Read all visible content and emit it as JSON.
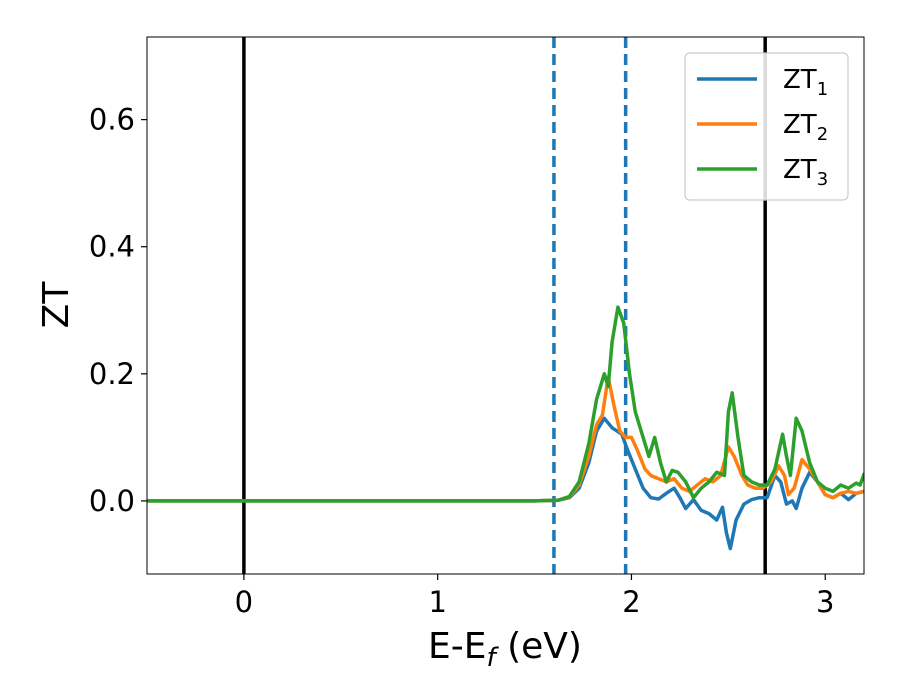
{
  "chart_data": {
    "type": "line",
    "xlabel": "E-E",
    "xlabel_sub": "f",
    "xlabel_unit": " (eV)",
    "ylabel": "ZT",
    "xlim": [
      -0.5,
      3.2
    ],
    "ylim": [
      -0.115,
      0.73
    ],
    "x_ticks": [
      0,
      1,
      2,
      3
    ],
    "x_tick_labels": [
      "0",
      "1",
      "2",
      "3"
    ],
    "y_ticks": [
      0.0,
      0.2,
      0.4,
      0.6
    ],
    "y_tick_labels": [
      "0.0",
      "0.2",
      "0.4",
      "0.6"
    ],
    "grid": false,
    "legend_position": "top-right",
    "vlines": [
      {
        "x": 0.0,
        "style": "solid",
        "color": "#000000"
      },
      {
        "x": 1.6,
        "style": "dashed",
        "color": "#1f77b4"
      },
      {
        "x": 1.97,
        "style": "dashed",
        "color": "#1f77b4"
      },
      {
        "x": 2.69,
        "style": "solid",
        "color": "#000000"
      }
    ],
    "series": [
      {
        "name": "ZT",
        "sub": "1",
        "color": "#1f77b4",
        "points": [
          [
            -0.5,
            0
          ],
          [
            1.5,
            0
          ],
          [
            1.62,
            0.001
          ],
          [
            1.68,
            0.005
          ],
          [
            1.73,
            0.02
          ],
          [
            1.78,
            0.06
          ],
          [
            1.82,
            0.11
          ],
          [
            1.86,
            0.13
          ],
          [
            1.9,
            0.115
          ],
          [
            1.95,
            0.105
          ],
          [
            1.98,
            0.08
          ],
          [
            2.02,
            0.05
          ],
          [
            2.06,
            0.02
          ],
          [
            2.1,
            0.005
          ],
          [
            2.14,
            0.003
          ],
          [
            2.18,
            0.012
          ],
          [
            2.22,
            0.02
          ],
          [
            2.25,
            0.005
          ],
          [
            2.28,
            -0.012
          ],
          [
            2.32,
            0.002
          ],
          [
            2.36,
            -0.015
          ],
          [
            2.4,
            -0.02
          ],
          [
            2.44,
            -0.03
          ],
          [
            2.47,
            -0.01
          ],
          [
            2.49,
            -0.05
          ],
          [
            2.51,
            -0.075
          ],
          [
            2.54,
            -0.03
          ],
          [
            2.58,
            -0.005
          ],
          [
            2.62,
            0.002
          ],
          [
            2.66,
            0.005
          ],
          [
            2.7,
            0.005
          ],
          [
            2.74,
            0.04
          ],
          [
            2.77,
            0.03
          ],
          [
            2.8,
            -0.005
          ],
          [
            2.83,
            0.0
          ],
          [
            2.85,
            -0.012
          ],
          [
            2.88,
            0.02
          ],
          [
            2.92,
            0.045
          ],
          [
            2.96,
            0.03
          ],
          [
            3.0,
            0.01
          ],
          [
            3.04,
            0.005
          ],
          [
            3.08,
            0.012
          ],
          [
            3.12,
            0.002
          ],
          [
            3.16,
            0.012
          ],
          [
            3.2,
            0.015
          ]
        ]
      },
      {
        "name": "ZT",
        "sub": "2",
        "color": "#ff7f0e",
        "points": [
          [
            -0.5,
            0
          ],
          [
            1.5,
            0
          ],
          [
            1.62,
            0.001
          ],
          [
            1.68,
            0.006
          ],
          [
            1.73,
            0.025
          ],
          [
            1.78,
            0.07
          ],
          [
            1.82,
            0.12
          ],
          [
            1.85,
            0.135
          ],
          [
            1.88,
            0.195
          ],
          [
            1.91,
            0.15
          ],
          [
            1.94,
            0.11
          ],
          [
            1.97,
            0.1
          ],
          [
            2.0,
            0.1
          ],
          [
            2.03,
            0.08
          ],
          [
            2.07,
            0.05
          ],
          [
            2.1,
            0.04
          ],
          [
            2.14,
            0.035
          ],
          [
            2.18,
            0.03
          ],
          [
            2.22,
            0.035
          ],
          [
            2.26,
            0.02
          ],
          [
            2.3,
            0.015
          ],
          [
            2.34,
            0.025
          ],
          [
            2.38,
            0.035
          ],
          [
            2.42,
            0.03
          ],
          [
            2.46,
            0.04
          ],
          [
            2.5,
            0.085
          ],
          [
            2.53,
            0.07
          ],
          [
            2.57,
            0.04
          ],
          [
            2.6,
            0.025
          ],
          [
            2.64,
            0.02
          ],
          [
            2.68,
            0.02
          ],
          [
            2.72,
            0.03
          ],
          [
            2.76,
            0.055
          ],
          [
            2.79,
            0.04
          ],
          [
            2.81,
            0.01
          ],
          [
            2.84,
            0.02
          ],
          [
            2.88,
            0.065
          ],
          [
            2.92,
            0.05
          ],
          [
            2.96,
            0.03
          ],
          [
            3.0,
            0.01
          ],
          [
            3.04,
            0.005
          ],
          [
            3.08,
            0.012
          ],
          [
            3.12,
            0.015
          ],
          [
            3.16,
            0.012
          ],
          [
            3.2,
            0.015
          ]
        ]
      },
      {
        "name": "ZT",
        "sub": "3",
        "color": "#2ca02c",
        "points": [
          [
            -0.5,
            0
          ],
          [
            1.5,
            0
          ],
          [
            1.62,
            0.001
          ],
          [
            1.68,
            0.007
          ],
          [
            1.73,
            0.03
          ],
          [
            1.78,
            0.09
          ],
          [
            1.82,
            0.16
          ],
          [
            1.86,
            0.2
          ],
          [
            1.88,
            0.18
          ],
          [
            1.9,
            0.25
          ],
          [
            1.93,
            0.305
          ],
          [
            1.96,
            0.28
          ],
          [
            1.99,
            0.2
          ],
          [
            2.02,
            0.14
          ],
          [
            2.06,
            0.1
          ],
          [
            2.09,
            0.07
          ],
          [
            2.12,
            0.1
          ],
          [
            2.15,
            0.06
          ],
          [
            2.18,
            0.03
          ],
          [
            2.21,
            0.048
          ],
          [
            2.24,
            0.045
          ],
          [
            2.28,
            0.03
          ],
          [
            2.32,
            0.005
          ],
          [
            2.36,
            0.02
          ],
          [
            2.4,
            0.03
          ],
          [
            2.44,
            0.045
          ],
          [
            2.48,
            0.04
          ],
          [
            2.5,
            0.14
          ],
          [
            2.52,
            0.17
          ],
          [
            2.55,
            0.1
          ],
          [
            2.58,
            0.04
          ],
          [
            2.62,
            0.03
          ],
          [
            2.66,
            0.025
          ],
          [
            2.7,
            0.025
          ],
          [
            2.74,
            0.05
          ],
          [
            2.78,
            0.105
          ],
          [
            2.8,
            0.07
          ],
          [
            2.82,
            0.04
          ],
          [
            2.85,
            0.13
          ],
          [
            2.88,
            0.11
          ],
          [
            2.92,
            0.06
          ],
          [
            2.96,
            0.03
          ],
          [
            3.0,
            0.02
          ],
          [
            3.04,
            0.015
          ],
          [
            3.08,
            0.025
          ],
          [
            3.12,
            0.02
          ],
          [
            3.16,
            0.028
          ],
          [
            3.18,
            0.025
          ],
          [
            3.2,
            0.042
          ]
        ]
      }
    ]
  }
}
